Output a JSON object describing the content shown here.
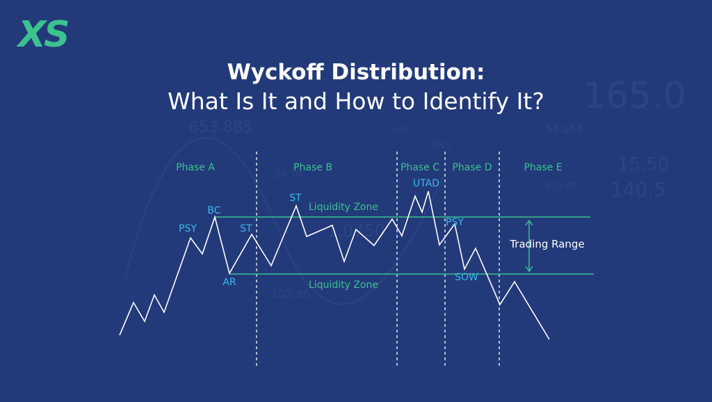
{
  "brand": {
    "logo_text": "XS"
  },
  "title": {
    "line1": "Wyckoff Distribution:",
    "line2": "What Is It and How to Identify It?"
  },
  "phases": [
    "Phase A",
    "Phase B",
    "Phase C",
    "Phase D",
    "Phase E"
  ],
  "events": {
    "psy1": "PSY",
    "bc": "BC",
    "st1": "ST",
    "ar": "AR",
    "st2": "ST",
    "utad": "UTAD",
    "psy2": "PSY",
    "sow": "SOW"
  },
  "zones": {
    "upper": "Liquidity Zone",
    "lower": "Liquidity Zone"
  },
  "trading_range_label": "Trading Range",
  "background_numbers": [
    "165.0",
    "58.153",
    "15.50",
    "140.5",
    "1668",
    "5015",
    "50.70",
    "833.45",
    "1.0750",
    "653.885",
    "103.80"
  ],
  "colors": {
    "background": "#233a7a",
    "accent_green": "#3ac28f",
    "event_blue": "#39b8f0",
    "price_line": "#ffffff",
    "divider": "#ffffff"
  }
}
